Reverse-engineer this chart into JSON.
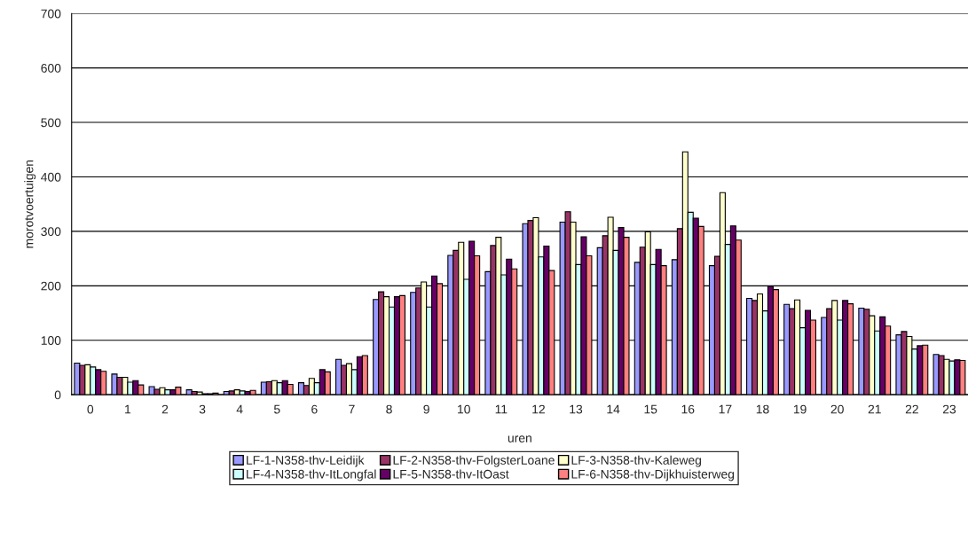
{
  "chart_data": {
    "type": "bar",
    "xlabel": "uren",
    "ylabel": "morotvoertuigen",
    "categories": [
      "0",
      "1",
      "2",
      "3",
      "4",
      "5",
      "6",
      "7",
      "8",
      "9",
      "10",
      "11",
      "12",
      "13",
      "14",
      "15",
      "16",
      "17",
      "18",
      "19",
      "20",
      "21",
      "22",
      "23"
    ],
    "series": [
      {
        "name": "LF-1-N358-thv-Leidijk",
        "color": "#9999ff",
        "values": [
          58,
          38,
          15,
          9,
          6,
          23,
          22,
          65,
          175,
          188,
          256,
          226,
          314,
          317,
          270,
          243,
          248,
          237,
          177,
          166,
          142,
          159,
          110,
          74
        ]
      },
      {
        "name": "LF-2-N358-thv-FolgsterLoane",
        "color": "#993366",
        "values": [
          54,
          32,
          10,
          6,
          7,
          24,
          17,
          54,
          189,
          196,
          265,
          274,
          320,
          336,
          292,
          271,
          305,
          254,
          173,
          158,
          158,
          157,
          116,
          72
        ]
      },
      {
        "name": "LF-3-N358-thv-Kaleweg",
        "color": "#ffffcc",
        "values": [
          55,
          32,
          13,
          5,
          9,
          26,
          30,
          57,
          180,
          207,
          280,
          289,
          325,
          317,
          326,
          299,
          446,
          371,
          185,
          174,
          173,
          145,
          107,
          65
        ]
      },
      {
        "name": "LF-4-N358-thv-ItLongfal",
        "color": "#ccffff",
        "values": [
          51,
          23,
          9,
          2,
          7,
          22,
          22,
          46,
          161,
          161,
          212,
          220,
          253,
          239,
          265,
          239,
          335,
          276,
          154,
          123,
          137,
          117,
          84,
          62
        ]
      },
      {
        "name": "LF-5-N358-thv-ItOast",
        "color": "#660066",
        "values": [
          46,
          26,
          9,
          2,
          6,
          26,
          46,
          70,
          180,
          218,
          282,
          249,
          273,
          290,
          307,
          267,
          324,
          310,
          199,
          155,
          173,
          143,
          90,
          64
        ]
      },
      {
        "name": "LF-6-N358-thv-Dijkhuisterweg",
        "color": "#ff8080",
        "values": [
          43,
          18,
          14,
          3,
          8,
          19,
          42,
          72,
          182,
          204,
          255,
          231,
          228,
          255,
          289,
          237,
          309,
          284,
          193,
          137,
          167,
          126,
          91,
          63
        ]
      }
    ],
    "ylim": [
      0,
      700
    ],
    "yticks": [
      0,
      100,
      200,
      300,
      400,
      500,
      600,
      700
    ],
    "grid": "y",
    "legend": "bottom"
  }
}
